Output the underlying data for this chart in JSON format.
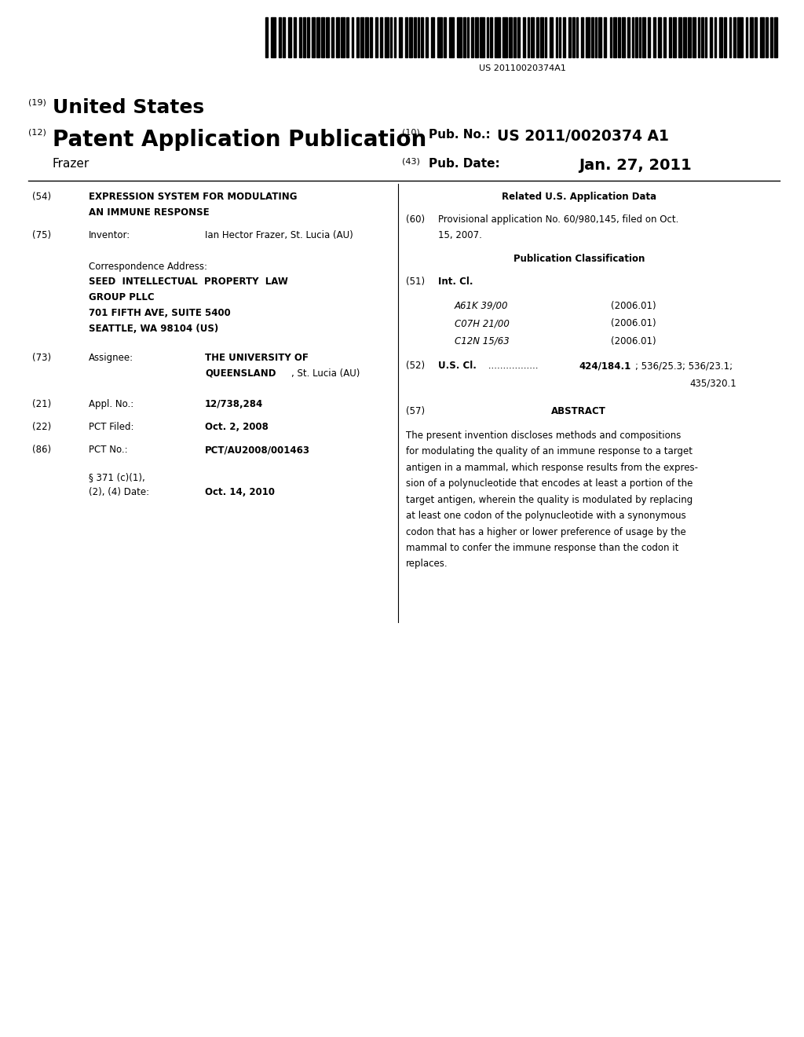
{
  "background_color": "#ffffff",
  "barcode_text": "US 20110020374A1",
  "num19_label": "(19)",
  "us_label": "United States",
  "num12_label": "(12)",
  "patent_app_pub": "Patent Application Publication",
  "num10_label": "(10)",
  "pub_no_label": "Pub. No.:",
  "pub_no_value": "US 2011/0020374 A1",
  "frazer_label": "Frazer",
  "num43_label": "(43)",
  "pub_date_label": "Pub. Date:",
  "pub_date_value": "Jan. 27, 2011",
  "abstract_lines": [
    "The present invention discloses methods and compositions",
    "for modulating the quality of an immune response to a target",
    "antigen in a mammal, which response results from the expres-",
    "sion of a polynucleotide that encodes at least a portion of the",
    "target antigen, wherein the quality is modulated by replacing",
    "at least one codon of the polynucleotide with a synonymous",
    "codon that has a higher or lower preference of usage by the",
    "mammal to confer the immune response than the codon it",
    "replaces."
  ]
}
